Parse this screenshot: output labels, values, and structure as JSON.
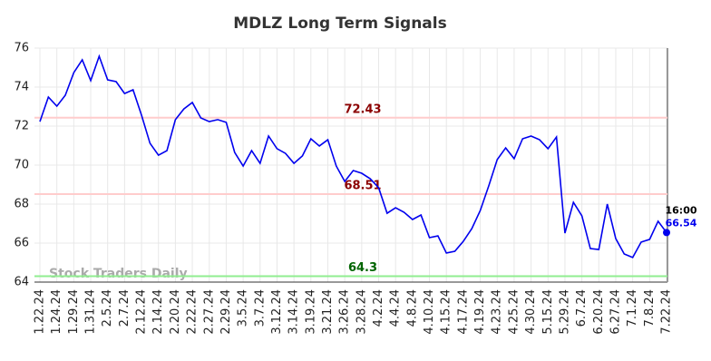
{
  "chart_data": {
    "type": "line",
    "title": "MDLZ Long Term Signals",
    "categories": [
      "1.22.24",
      null,
      "1.24.24",
      null,
      "1.29.24",
      null,
      "1.31.24",
      null,
      "2.5.24",
      null,
      "2.7.24",
      null,
      "2.12.24",
      null,
      "2.14.24",
      null,
      "2.20.24",
      null,
      "2.22.24",
      null,
      "2.27.24",
      null,
      "2.29.24",
      null,
      "3.5.24",
      null,
      "3.7.24",
      null,
      "3.12.24",
      null,
      "3.14.24",
      null,
      "3.19.24",
      null,
      "3.21.24",
      null,
      "3.26.24",
      null,
      "3.28.24",
      null,
      "4.2.24",
      null,
      "4.4.24",
      null,
      "4.8.24",
      null,
      "4.10.24",
      null,
      "4.15.24",
      null,
      "4.17.24",
      null,
      "4.19.24",
      null,
      "4.23.24",
      null,
      "4.25.24",
      null,
      "4.30.24",
      null,
      "5.15.24",
      null,
      "5.29.24",
      null,
      "6.7.24",
      null,
      "6.20.24",
      null,
      "6.27.24",
      null,
      "7.1.24",
      null,
      "7.8.24",
      null,
      "7.22.24"
    ],
    "values": [
      72.23,
      73.49,
      73.02,
      73.58,
      74.74,
      75.4,
      74.33,
      75.58,
      74.37,
      74.28,
      73.67,
      73.86,
      72.56,
      71.12,
      70.51,
      70.74,
      72.33,
      72.88,
      73.21,
      72.42,
      72.23,
      72.33,
      72.19,
      70.65,
      69.95,
      70.74,
      70.09,
      71.49,
      70.84,
      70.6,
      70.09,
      70.47,
      71.35,
      70.98,
      71.3,
      69.95,
      69.16,
      69.72,
      69.58,
      69.3,
      68.84,
      67.53,
      67.81,
      67.58,
      67.21,
      67.44,
      66.28,
      66.37,
      65.49,
      65.58,
      66.09,
      66.74,
      67.67,
      68.93,
      70.28,
      70.88,
      70.33,
      71.35,
      71.49,
      71.3,
      70.84,
      71.44,
      66.51,
      68.09,
      67.4,
      65.72,
      65.67,
      68.0,
      66.23,
      65.44,
      65.26,
      66.05,
      66.19,
      67.12,
      66.54
    ],
    "color": "#0000ee",
    "ylim": [
      64,
      76
    ],
    "yticks": [
      64,
      66,
      68,
      70,
      72,
      74,
      76
    ],
    "grid": true,
    "reference_lines": [
      {
        "value": 72.43,
        "color": "#ffcccc",
        "label_color": "#8b0000"
      },
      {
        "value": 68.51,
        "color": "#ffcccc",
        "label_color": "#8b0000"
      },
      {
        "value": 64.3,
        "color": "#90ee90",
        "label_color": "#006400"
      }
    ],
    "last_time": "16:00",
    "watermark": "Stock Traders Daily"
  }
}
